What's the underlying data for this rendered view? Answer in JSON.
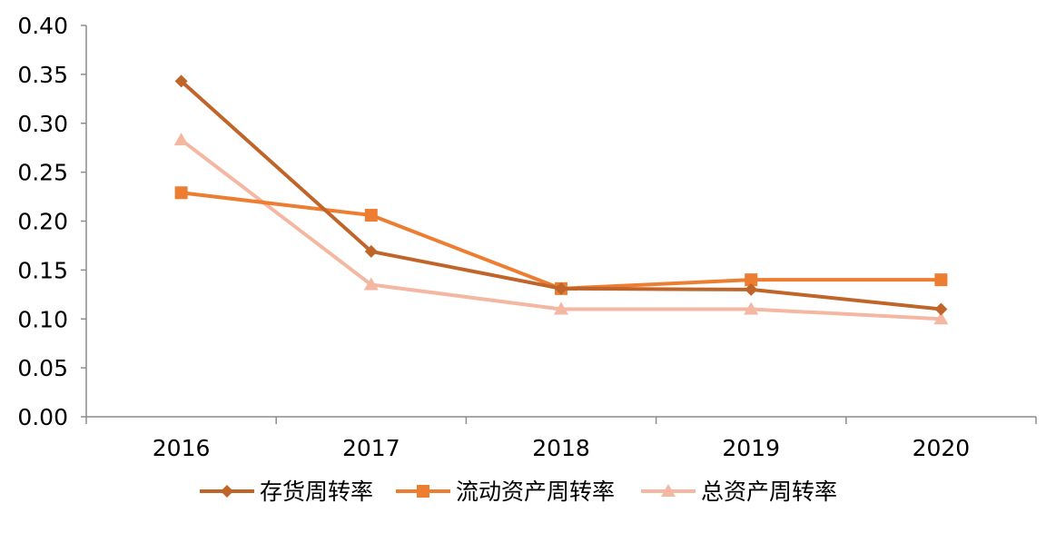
{
  "chart_data": {
    "type": "line",
    "title": "",
    "xlabel": "",
    "ylabel": "",
    "categories": [
      "2016",
      "2017",
      "2018",
      "2019",
      "2020"
    ],
    "ylim": [
      0,
      0.4
    ],
    "yticks": [
      "0.00",
      "0.05",
      "0.10",
      "0.15",
      "0.20",
      "0.25",
      "0.30",
      "0.35",
      "0.40"
    ],
    "grid": false,
    "legend_position": "bottom",
    "series": [
      {
        "name": "存货周转率",
        "values": [
          0.343,
          0.169,
          0.131,
          0.13,
          0.11
        ],
        "color": "#c0652a",
        "marker": "diamond"
      },
      {
        "name": "流动资产周转率",
        "values": [
          0.229,
          0.206,
          0.131,
          0.14,
          0.14
        ],
        "color": "#ed7d31",
        "marker": "square"
      },
      {
        "name": "总资产周转率",
        "values": [
          0.283,
          0.135,
          0.11,
          0.11,
          0.1
        ],
        "color": "#f4b7a2",
        "marker": "triangle"
      }
    ]
  }
}
